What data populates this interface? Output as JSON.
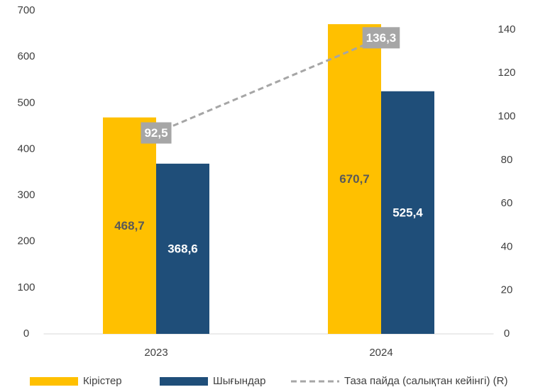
{
  "chart_data": {
    "type": "bar",
    "categories": [
      "2023",
      "2024"
    ],
    "series": [
      {
        "name": "Кірістер",
        "color": "#ffc000",
        "label_color": "#595959",
        "values": [
          468.7,
          670.7
        ],
        "value_labels": [
          "468,7",
          "670,7"
        ]
      },
      {
        "name": "Шығындар",
        "color": "#1f4e79",
        "label_color": "#ffffff",
        "values": [
          368.6,
          525.4
        ],
        "value_labels": [
          "368,6",
          "525,4"
        ]
      },
      {
        "name": "Таза пайда (салықтан кейінгі) (R)",
        "type": "line",
        "axis": "y2",
        "color": "#a6a6a6",
        "label_color": "#ffffff",
        "values": [
          92.5,
          136.3
        ],
        "value_labels": [
          "92,5",
          "136,3"
        ]
      }
    ],
    "ylim": [
      0,
      700
    ],
    "yticks": [
      0,
      100,
      200,
      300,
      400,
      500,
      600,
      700
    ],
    "y2lim": [
      0,
      148.8
    ],
    "y2ticks": [
      0,
      20,
      40,
      60,
      80,
      100,
      120,
      140
    ]
  }
}
